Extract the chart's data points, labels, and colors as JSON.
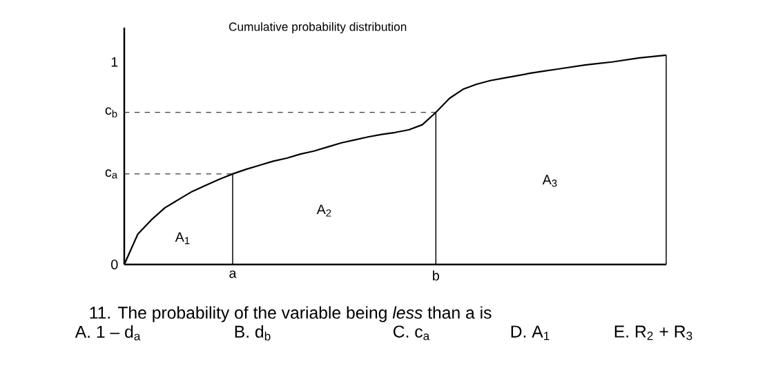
{
  "chart_data": {
    "type": "line",
    "title": "Cumulative probability distribution",
    "categories": [
      null,
      null,
      null,
      null,
      null,
      null,
      null,
      null,
      "a",
      null,
      null,
      null,
      null,
      null,
      null,
      null,
      null,
      null,
      null,
      null,
      null,
      null,
      null,
      "b",
      null,
      null,
      null,
      null,
      null,
      null,
      null,
      null,
      null,
      null,
      null,
      null,
      null,
      null,
      null,
      null,
      null
    ],
    "series": [
      {
        "color": "#000000",
        "values": [
          0,
          0.15,
          0.22,
          0.28,
          0.32,
          0.36,
          0.39,
          0.42,
          0.447,
          0.47,
          0.49,
          0.51,
          0.525,
          0.545,
          0.56,
          0.58,
          0.6,
          0.615,
          0.63,
          0.642,
          0.652,
          0.665,
          0.69,
          0.751,
          0.82,
          0.865,
          0.89,
          0.908,
          0.92,
          0.932,
          0.945,
          0.955,
          0.965,
          0.975,
          0.985,
          0.993,
          1.0,
          1.01,
          1.02,
          1.027,
          1.034
        ]
      }
    ],
    "ylim": [
      0,
      1.17
    ],
    "yticks": [
      0,
      {
        "value": 0.447,
        "label": "c$_{a}$"
      },
      {
        "value": 0.751,
        "label": "c$_{b}$"
      },
      1
    ],
    "ref_lines": [
      {
        "axis": "y",
        "value": 0.447,
        "color": "#000000",
        "line_style": "dashed"
      },
      {
        "axis": "y",
        "value": 0.751,
        "color": "#000000",
        "line_style": "dashed"
      },
      {
        "axis": "x",
        "value": "a",
        "color": "#000000",
        "line_style": "solid"
      },
      {
        "axis": "x",
        "value": "b",
        "color": "#000000",
        "line_style": "solid"
      }
    ],
    "annotations": [
      "A$_{1}$",
      "A$_{2}$",
      "A$_{3}$",
      "11. The probability of the variable being *less* than a is",
      "A. 1 – d$_{a}$",
      "B. d$_{b}$",
      "C. c$_{a}$",
      "D. A$_{1}$",
      "E. R$_{2}$ + R$_{3}$"
    ]
  }
}
